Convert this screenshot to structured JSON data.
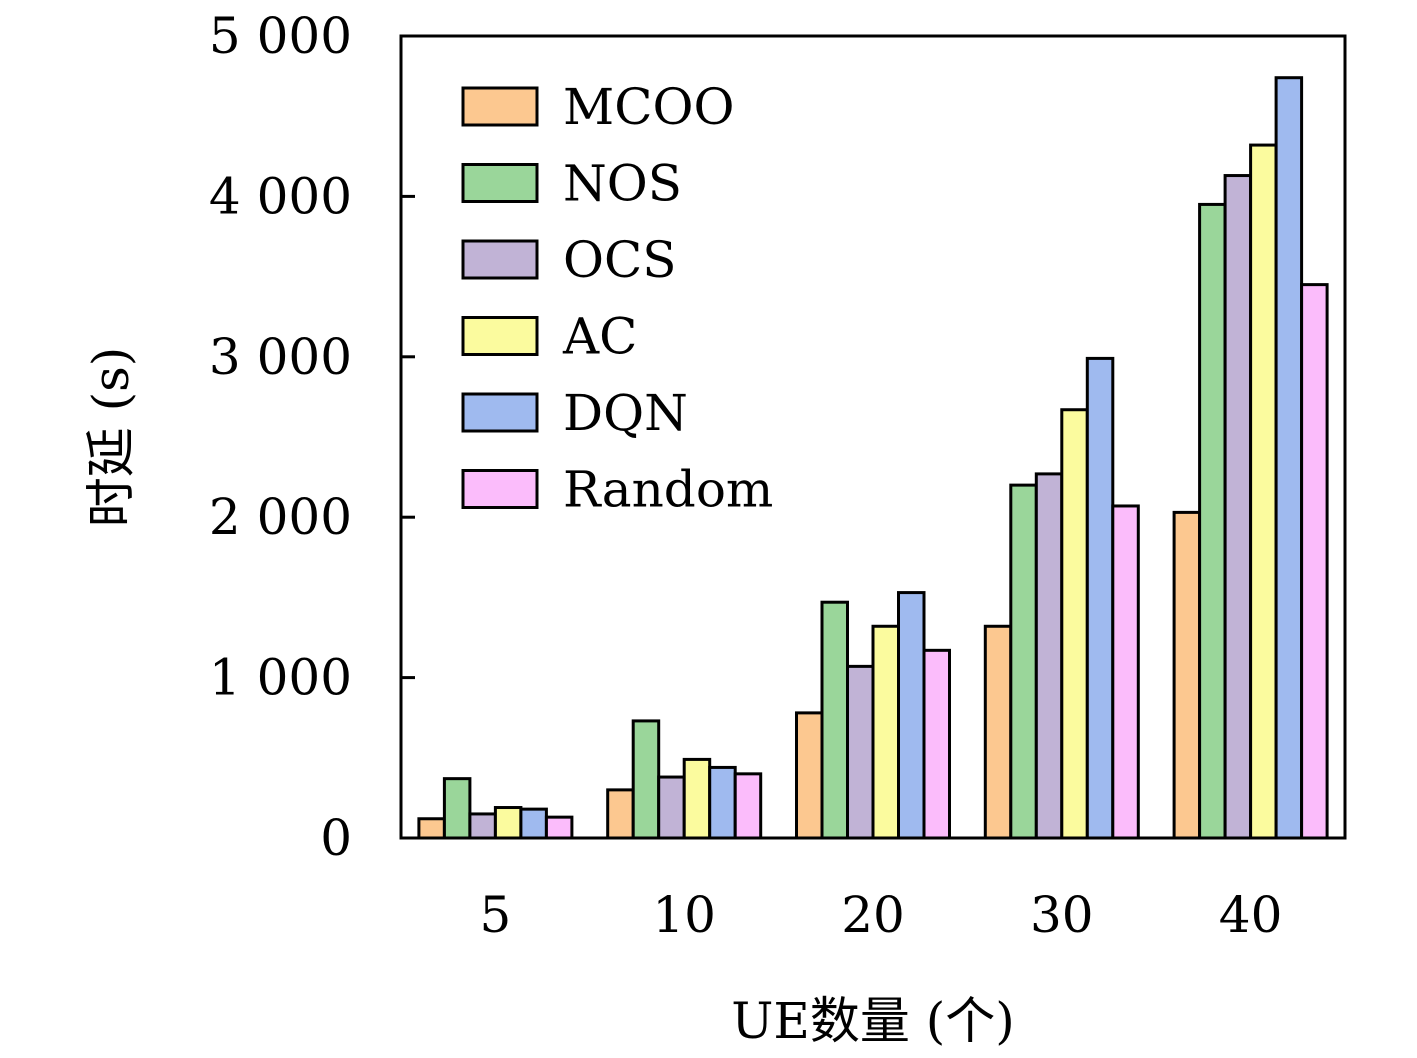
{
  "chart_data": {
    "type": "bar",
    "xlabel": "UE数量 (个)",
    "ylabel": "时延 (s)",
    "ylim": [
      0,
      5000
    ],
    "yticks": [
      0,
      1000,
      2000,
      3000,
      4000,
      5000
    ],
    "ytick_labels": [
      "0",
      "1 000",
      "2 000",
      "3 000",
      "4 000",
      "5 000"
    ],
    "categories": [
      "5",
      "10",
      "20",
      "30",
      "40"
    ],
    "legend_position": "top-left",
    "grid": false,
    "series": [
      {
        "name": "MCOO",
        "color": "#fcc890",
        "values": [
          120,
          300,
          780,
          1320,
          2030
        ]
      },
      {
        "name": "NOS",
        "color": "#9ad69a",
        "values": [
          370,
          730,
          1470,
          2200,
          3950
        ]
      },
      {
        "name": "OCS",
        "color": "#c1b3d6",
        "values": [
          150,
          380,
          1070,
          2270,
          4130
        ]
      },
      {
        "name": "AC",
        "color": "#fbfb9e",
        "values": [
          190,
          490,
          1320,
          2670,
          4320
        ]
      },
      {
        "name": "DQN",
        "color": "#9fbaef",
        "values": [
          180,
          440,
          1530,
          2990,
          4740
        ]
      },
      {
        "name": "Random",
        "color": "#fbbcfb",
        "values": [
          130,
          400,
          1170,
          2070,
          3450
        ]
      }
    ]
  }
}
